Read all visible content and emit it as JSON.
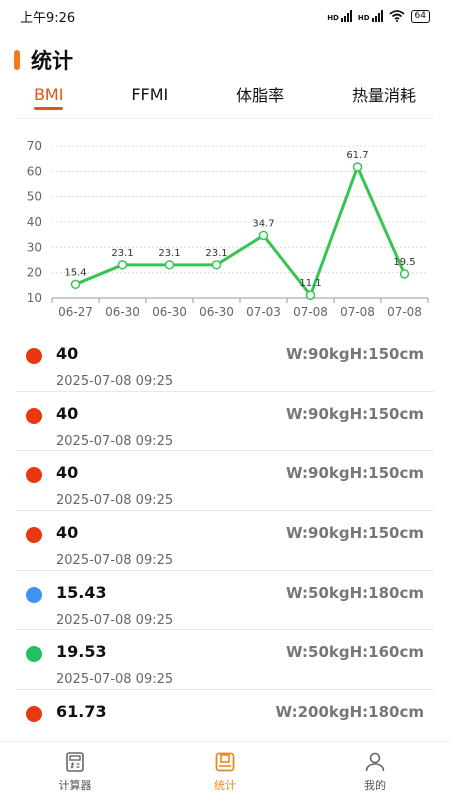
{
  "status": {
    "time": "上午9:26",
    "net1": "HD",
    "net2": "HD",
    "battery": "64"
  },
  "header": {
    "title": "统计"
  },
  "tabs": [
    {
      "label": "BMI",
      "active": true
    },
    {
      "label": "FFMI",
      "active": false
    },
    {
      "label": "体脂率",
      "active": false
    },
    {
      "label": "热量消耗",
      "active": false
    }
  ],
  "chart_data": {
    "type": "line",
    "categories": [
      "06-27",
      "06-30",
      "06-30",
      "06-30",
      "07-03",
      "07-08",
      "07-08",
      "07-08"
    ],
    "values": [
      15.4,
      23.1,
      23.1,
      23.1,
      34.7,
      11.1,
      61.7,
      19.5
    ],
    "data_labels": [
      "15.4",
      "23.1",
      "23.1",
      "23.1",
      "34.7",
      "11.1",
      "61.7",
      "19.5"
    ],
    "ylim": [
      10,
      70
    ],
    "yticks": [
      10,
      20,
      30,
      40,
      50,
      60,
      70
    ],
    "grid": true,
    "line_color": "#35c553"
  },
  "records": [
    {
      "value": "40",
      "measure": "W:90kgH:150cm",
      "date": "2025-07-08 09:25",
      "color": "#e8380f"
    },
    {
      "value": "40",
      "measure": "W:90kgH:150cm",
      "date": "2025-07-08 09:25",
      "color": "#e8380f"
    },
    {
      "value": "40",
      "measure": "W:90kgH:150cm",
      "date": "2025-07-08 09:25",
      "color": "#e8380f"
    },
    {
      "value": "40",
      "measure": "W:90kgH:150cm",
      "date": "2025-07-08 09:25",
      "color": "#e8380f"
    },
    {
      "value": "15.43",
      "measure": "W:50kgH:180cm",
      "date": "2025-07-08 09:25",
      "color": "#3d92f2"
    },
    {
      "value": "19.53",
      "measure": "W:50kgH:160cm",
      "date": "2025-07-08 09:25",
      "color": "#1fc25e"
    },
    {
      "value": "61.73",
      "measure": "W:200kgH:180cm",
      "date": "",
      "color": "#e8380f"
    }
  ],
  "nav": [
    {
      "label": "计算器",
      "icon": "calculator-icon",
      "active": false
    },
    {
      "label": "统计",
      "icon": "stats-icon",
      "active": true
    },
    {
      "label": "我的",
      "icon": "profile-icon",
      "active": false
    }
  ]
}
